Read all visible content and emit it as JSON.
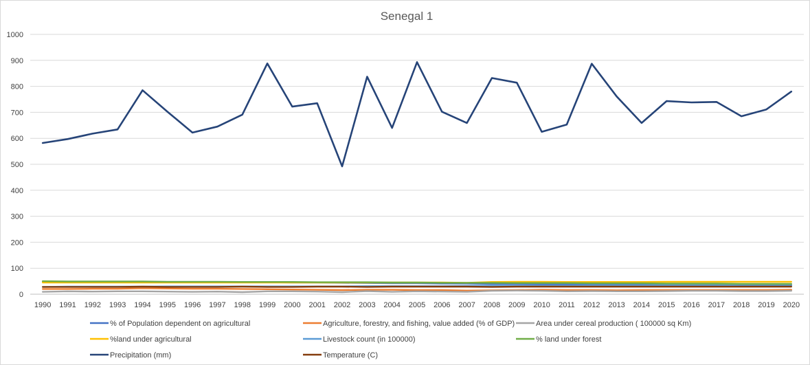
{
  "chart_data": {
    "type": "line",
    "title": "Senegal 1",
    "xlabel": "",
    "ylabel": "",
    "ylim": [
      0,
      1000
    ],
    "yticks": [
      0,
      100,
      200,
      300,
      400,
      500,
      600,
      700,
      800,
      900,
      1000
    ],
    "grid": true,
    "legend_position": "bottom",
    "categories": [
      "1990",
      "1991",
      "1992",
      "1993",
      "1994",
      "1995",
      "1996",
      "1997",
      "1998",
      "1999",
      "2000",
      "2001",
      "2002",
      "2003",
      "2004",
      "2005",
      "2006",
      "2007",
      "2008",
      "2009",
      "2010",
      "2011",
      "2012",
      "2013",
      "2014",
      "2015",
      "2016",
      "2017",
      "2018",
      "2019",
      "2020"
    ],
    "series": [
      {
        "name": "% of Population dependent on agricultural",
        "color": "#4472C4",
        "values": [
          48,
          48,
          48,
          48,
          48,
          47,
          47,
          47,
          46,
          46,
          45,
          45,
          44,
          43,
          42,
          42,
          41,
          41,
          40,
          40,
          39,
          39,
          38,
          38,
          37,
          37,
          36,
          36,
          35,
          35,
          34
        ]
      },
      {
        "name": "Agriculture, forestry, and fishing, value added (% of GDP)",
        "color": "#ED7D31",
        "values": [
          20,
          20,
          21,
          21,
          23,
          22,
          21,
          21,
          20,
          19,
          18,
          17,
          16,
          17,
          17,
          16,
          16,
          14,
          15,
          16,
          17,
          16,
          16,
          15,
          16,
          16,
          16,
          16,
          16,
          16,
          17
        ]
      },
      {
        "name": "Area under cereal production ( 100000 sq Km)",
        "color": "#A5A5A5",
        "values": [
          9,
          11,
          10,
          11,
          11,
          10,
          9,
          10,
          8,
          11,
          11,
          10,
          8,
          12,
          9,
          11,
          10,
          9,
          13,
          14,
          13,
          11,
          12,
          11,
          11,
          12,
          13,
          13,
          12,
          12,
          13
        ]
      },
      {
        "name": "%land under agricultural",
        "color": "#FFC000",
        "values": [
          45,
          45,
          45,
          45,
          45,
          45,
          45,
          45,
          45,
          45,
          45,
          45,
          45,
          45,
          45,
          45,
          45,
          44,
          47,
          48,
          48,
          47,
          47,
          47,
          47,
          48,
          48,
          48,
          48,
          48,
          48
        ]
      },
      {
        "name": "Livestock count (in 100000)",
        "color": "#5B9BD5",
        "values": [
          28,
          29,
          29,
          29,
          29,
          30,
          30,
          30,
          30,
          30,
          30,
          30,
          30,
          31,
          31,
          31,
          31,
          32,
          33,
          33,
          33,
          33,
          34,
          34,
          34,
          35,
          35,
          35,
          36,
          36,
          36
        ]
      },
      {
        "name": "% land under forest",
        "color": "#70AD47",
        "values": [
          50,
          49,
          49,
          49,
          49,
          48,
          48,
          48,
          47,
          47,
          47,
          46,
          46,
          46,
          45,
          45,
          44,
          44,
          44,
          43,
          43,
          43,
          42,
          42,
          42,
          41,
          41,
          41,
          40,
          40,
          40
        ]
      },
      {
        "name": "Precipitation (mm)",
        "color": "#264478",
        "values": [
          582,
          597,
          618,
          634,
          785,
          702,
          622,
          645,
          691,
          888,
          722,
          735,
          492,
          837,
          640,
          893,
          702,
          659,
          832,
          814,
          625,
          653,
          887,
          761,
          659,
          743,
          738,
          740,
          685,
          711,
          780
        ]
      },
      {
        "name": "Temperature (C)",
        "color": "#843C0C",
        "values": [
          28,
          28,
          28,
          28,
          29,
          28,
          28,
          28,
          29,
          28,
          28,
          29,
          29,
          28,
          29,
          29,
          29,
          29,
          28,
          29,
          29,
          29,
          29,
          29,
          29,
          29,
          29,
          29,
          29,
          29,
          29
        ]
      }
    ]
  }
}
